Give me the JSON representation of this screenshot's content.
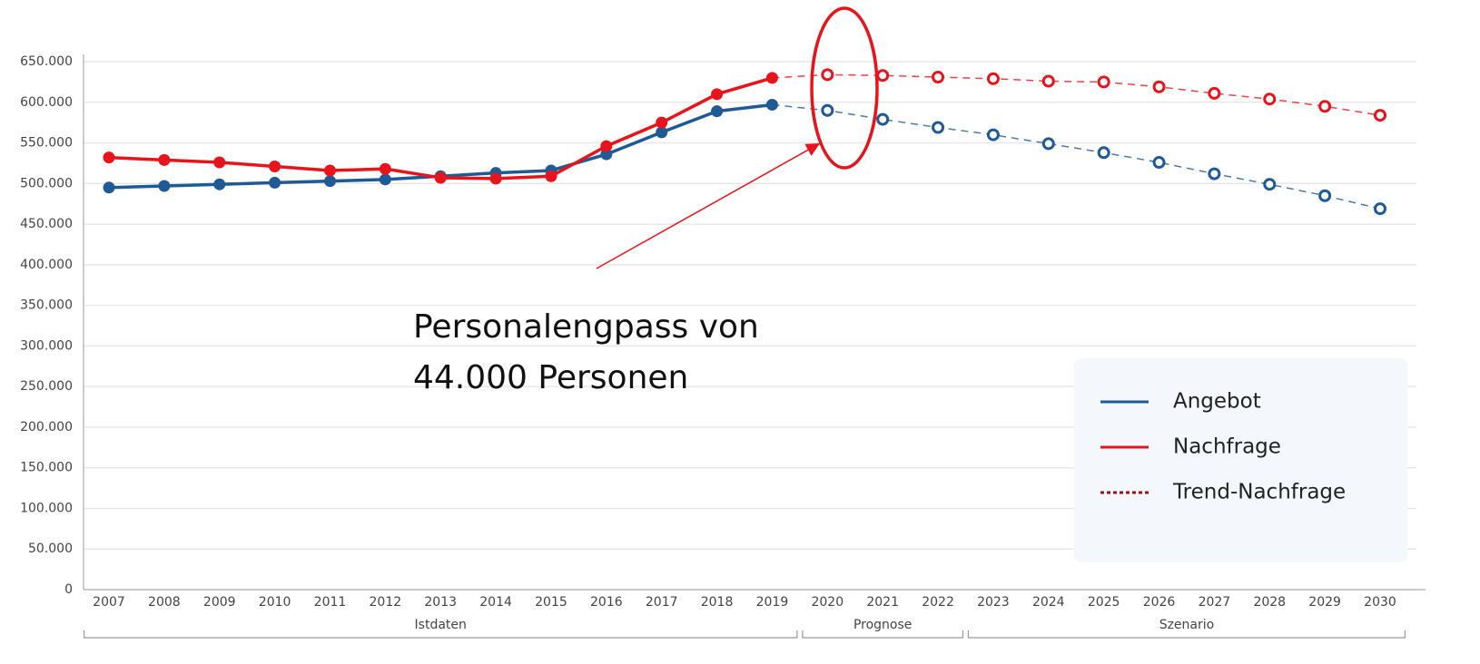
{
  "chart_data": {
    "type": "line",
    "categories": [
      "2007",
      "2008",
      "2009",
      "2010",
      "2011",
      "2012",
      "2013",
      "2014",
      "2015",
      "2016",
      "2017",
      "2018",
      "2019",
      "2020",
      "2021",
      "2022",
      "2023",
      "2024",
      "2025",
      "2026",
      "2027",
      "2028",
      "2029",
      "2030"
    ],
    "series": [
      {
        "name": "Angebot",
        "color": "#1f5a96",
        "dash": "solid",
        "values": [
          495000,
          497000,
          499000,
          501000,
          503000,
          505000,
          509000,
          513000,
          516000,
          536000,
          563000,
          589000,
          597000,
          590000,
          579000,
          569000,
          560000,
          549000,
          538000,
          526000,
          512000,
          499000,
          485000,
          469000
        ]
      },
      {
        "name": "Nachfrage",
        "color": "#e8141b",
        "dash": "solid",
        "values": [
          532000,
          529000,
          526000,
          521000,
          516000,
          518000,
          507000,
          506000,
          509000,
          546000,
          575000,
          610000,
          630000,
          634000,
          633000,
          631000,
          629000,
          626000,
          625000,
          619000,
          611000,
          604000,
          595000,
          584000
        ]
      },
      {
        "name": "Trend-Nachfrage",
        "color": "#a01018",
        "dash": "dotted",
        "values": [
          null,
          null,
          null,
          null,
          null,
          null,
          null,
          null,
          null,
          null,
          null,
          null,
          null,
          null,
          null,
          null,
          null,
          null,
          null,
          null,
          null,
          null,
          null,
          null
        ]
      }
    ],
    "periods": [
      {
        "label": "Istdaten",
        "start": "2007",
        "end": "2019"
      },
      {
        "label": "Prognose",
        "start": "2020",
        "end": "2022"
      },
      {
        "label": "Szenario",
        "start": "2023",
        "end": "2030"
      }
    ],
    "ylim": [
      0,
      650000
    ],
    "yticks": [
      0,
      {
        "value": 50000,
        "label": "50.000"
      },
      {
        "value": 100000,
        "label": "100.000"
      },
      {
        "value": 150000,
        "label": "150.000"
      },
      {
        "value": 200000,
        "label": "200.000"
      },
      {
        "value": 250000,
        "label": "250.000"
      },
      {
        "value": 300000,
        "label": "300.000"
      },
      {
        "value": 350000,
        "label": "350.000"
      },
      {
        "value": 400000,
        "label": "400.000"
      },
      {
        "value": 450000,
        "label": "450.000"
      },
      {
        "value": 500000,
        "label": "500.000"
      },
      {
        "value": 550000,
        "label": "550.000"
      },
      {
        "value": 600000,
        "label": "600.000"
      },
      {
        "value": 650000,
        "label": "650.000"
      }
    ],
    "grid": true,
    "legend": "bottom-right",
    "annotation": [
      "Personalengpass von",
      "44.000 Personen"
    ]
  }
}
